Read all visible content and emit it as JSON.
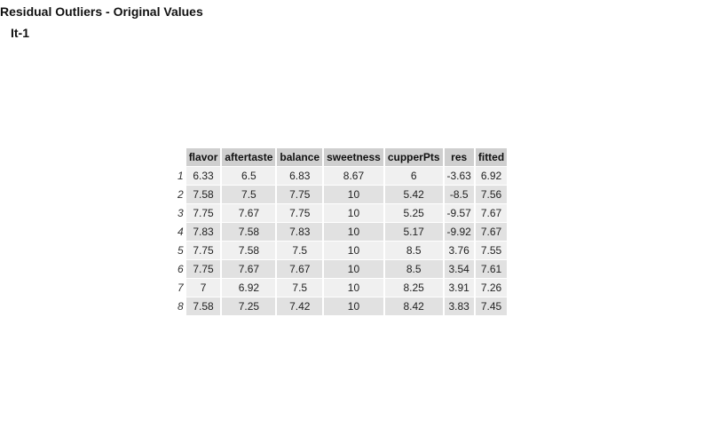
{
  "header": {
    "title": "Residual Outliers - Original Values",
    "subtitle": "It-1"
  },
  "table": {
    "columns": [
      "flavor",
      "aftertaste",
      "balance",
      "sweetness",
      "cupperPts",
      "res",
      "fitted"
    ],
    "rows": [
      {
        "index": "1",
        "values": [
          "6.33",
          "6.5",
          "6.83",
          "8.67",
          "6",
          "-3.63",
          "6.92"
        ]
      },
      {
        "index": "2",
        "values": [
          "7.58",
          "7.5",
          "7.75",
          "10",
          "5.42",
          "-8.5",
          "7.56"
        ]
      },
      {
        "index": "3",
        "values": [
          "7.75",
          "7.67",
          "7.75",
          "10",
          "5.25",
          "-9.57",
          "7.67"
        ]
      },
      {
        "index": "4",
        "values": [
          "7.83",
          "7.58",
          "7.83",
          "10",
          "5.17",
          "-9.92",
          "7.67"
        ]
      },
      {
        "index": "5",
        "values": [
          "7.75",
          "7.58",
          "7.5",
          "10",
          "8.5",
          "3.76",
          "7.55"
        ]
      },
      {
        "index": "6",
        "values": [
          "7.75",
          "7.67",
          "7.67",
          "10",
          "8.5",
          "3.54",
          "7.61"
        ]
      },
      {
        "index": "7",
        "values": [
          "7",
          "6.92",
          "7.5",
          "10",
          "8.25",
          "3.91",
          "7.26"
        ]
      },
      {
        "index": "8",
        "values": [
          "7.58",
          "7.25",
          "7.42",
          "10",
          "8.42",
          "3.83",
          "7.45"
        ]
      }
    ]
  }
}
